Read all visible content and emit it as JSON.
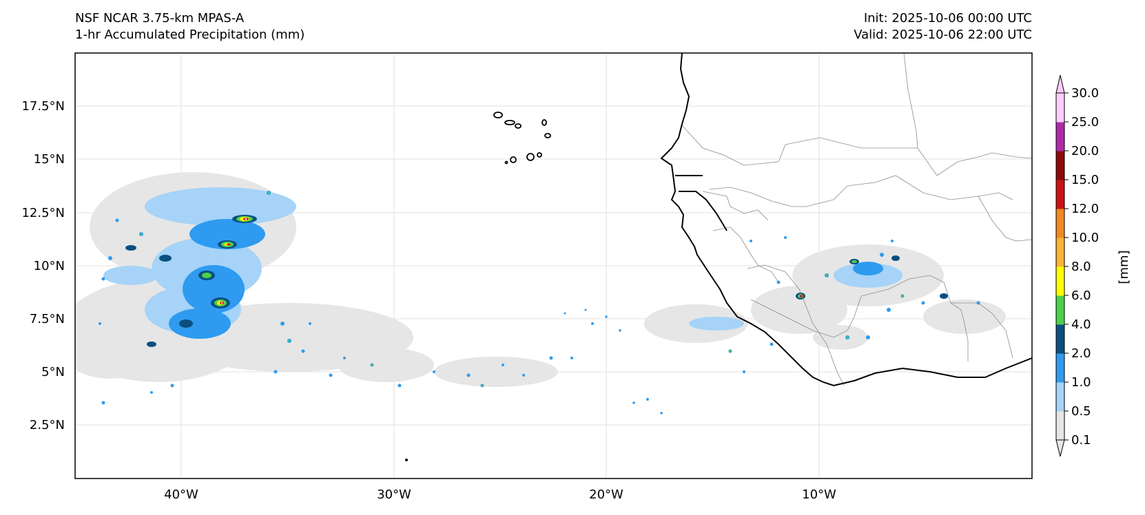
{
  "header": {
    "left_line1": "NSF NCAR 3.75-km MPAS-A",
    "left_line2": "1-hr Accumulated Precipitation (mm)",
    "right_line1": "Init: 2025-10-06 00:00 UTC",
    "right_line2": "Valid: 2025-10-06 22:00 UTC"
  },
  "axes": {
    "lat_labels": [
      "17.5°N",
      "15°N",
      "12.5°N",
      "10°N",
      "7.5°N",
      "5°N",
      "2.5°N"
    ],
    "lon_labels": [
      "40°W",
      "30°W",
      "20°W",
      "10°W"
    ]
  },
  "colorbar": {
    "unit_label": "[mm]",
    "levels": [
      "0.1",
      "0.5",
      "1.0",
      "2.0",
      "4.0",
      "6.0",
      "8.0",
      "10.0",
      "12.0",
      "15.0",
      "20.0",
      "25.0",
      "30.0"
    ],
    "colors": [
      "#e6e6e6",
      "#a6d3f7",
      "#2e9bf0",
      "#0b4f7f",
      "#4dd04b",
      "#ffff00",
      "#fab333",
      "#ef8a20",
      "#cc1111",
      "#8c0a0a",
      "#b02aa8",
      "#ffccff"
    ]
  }
}
